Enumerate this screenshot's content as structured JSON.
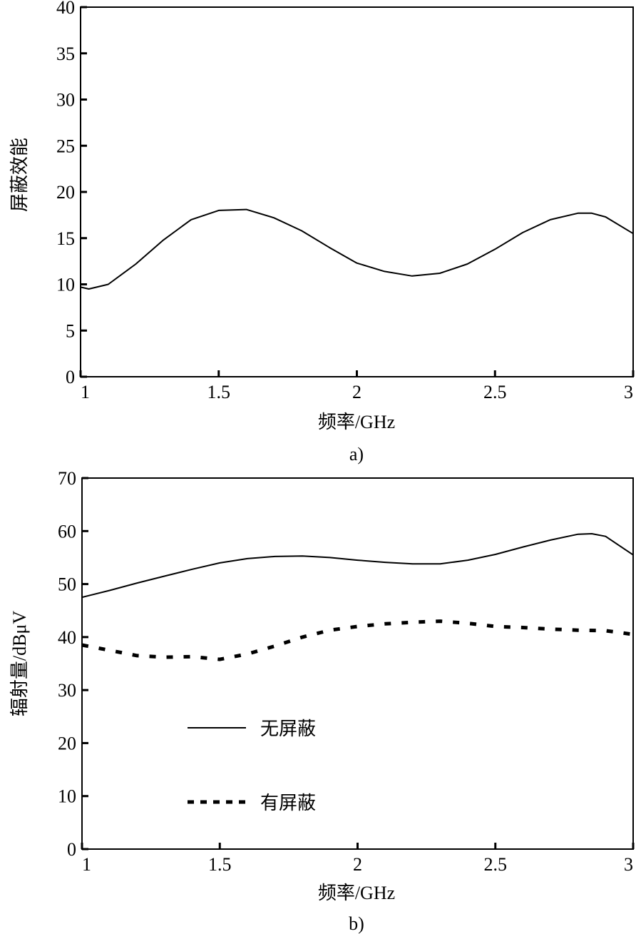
{
  "chart_data": [
    {
      "type": "line",
      "panel_label": "a)",
      "xlabel": "频率/GHz",
      "ylabel": "屏蔽效能",
      "xlim": [
        1,
        3
      ],
      "ylim": [
        0,
        40
      ],
      "xticks": [
        "1",
        "1.5",
        "2",
        "2.5",
        "3"
      ],
      "yticks": [
        "0",
        "5",
        "10",
        "15",
        "20",
        "25",
        "30",
        "35",
        "40"
      ],
      "grid": false,
      "series": [
        {
          "name": "屏蔽效能",
          "style": "solid",
          "x": [
            1.0,
            1.03,
            1.1,
            1.2,
            1.3,
            1.4,
            1.5,
            1.6,
            1.7,
            1.8,
            1.9,
            2.0,
            2.1,
            2.2,
            2.3,
            2.4,
            2.5,
            2.6,
            2.7,
            2.8,
            2.85,
            2.9,
            3.0
          ],
          "y": [
            9.7,
            9.5,
            10.0,
            12.2,
            14.8,
            17.0,
            18.0,
            18.1,
            17.2,
            15.8,
            14.0,
            12.3,
            11.4,
            10.9,
            11.2,
            12.2,
            13.8,
            15.6,
            17.0,
            17.7,
            17.7,
            17.3,
            15.5
          ]
        }
      ]
    },
    {
      "type": "line",
      "panel_label": "b)",
      "xlabel": "频率/GHz",
      "ylabel": "辐射量/dBμV",
      "xlim": [
        1,
        3
      ],
      "ylim": [
        0,
        70
      ],
      "xticks": [
        "1",
        "1.5",
        "2",
        "2.5",
        "3"
      ],
      "yticks": [
        "0",
        "10",
        "20",
        "30",
        "40",
        "50",
        "60",
        "70"
      ],
      "grid": false,
      "legend_placement": "center-left",
      "series": [
        {
          "name": "无屏蔽",
          "style": "solid",
          "x": [
            1.0,
            1.1,
            1.2,
            1.3,
            1.4,
            1.5,
            1.6,
            1.7,
            1.8,
            1.9,
            2.0,
            2.1,
            2.2,
            2.3,
            2.4,
            2.5,
            2.6,
            2.7,
            2.8,
            2.85,
            2.9,
            3.0
          ],
          "y": [
            47.5,
            48.8,
            50.2,
            51.5,
            52.8,
            54.0,
            54.8,
            55.2,
            55.3,
            55.0,
            54.5,
            54.1,
            53.8,
            53.8,
            54.5,
            55.6,
            57.0,
            58.3,
            59.4,
            59.5,
            59.0,
            55.5
          ]
        },
        {
          "name": "有屏蔽",
          "style": "dashed",
          "x": [
            1.0,
            1.1,
            1.2,
            1.3,
            1.4,
            1.5,
            1.6,
            1.7,
            1.8,
            1.9,
            2.0,
            2.1,
            2.2,
            2.3,
            2.4,
            2.5,
            2.6,
            2.7,
            2.8,
            2.9,
            3.0
          ],
          "y": [
            38.5,
            37.5,
            36.5,
            36.2,
            36.3,
            35.8,
            36.8,
            38.3,
            40.0,
            41.3,
            42.0,
            42.5,
            42.8,
            43.0,
            42.6,
            42.0,
            41.8,
            41.5,
            41.3,
            41.2,
            40.5
          ]
        }
      ]
    }
  ]
}
